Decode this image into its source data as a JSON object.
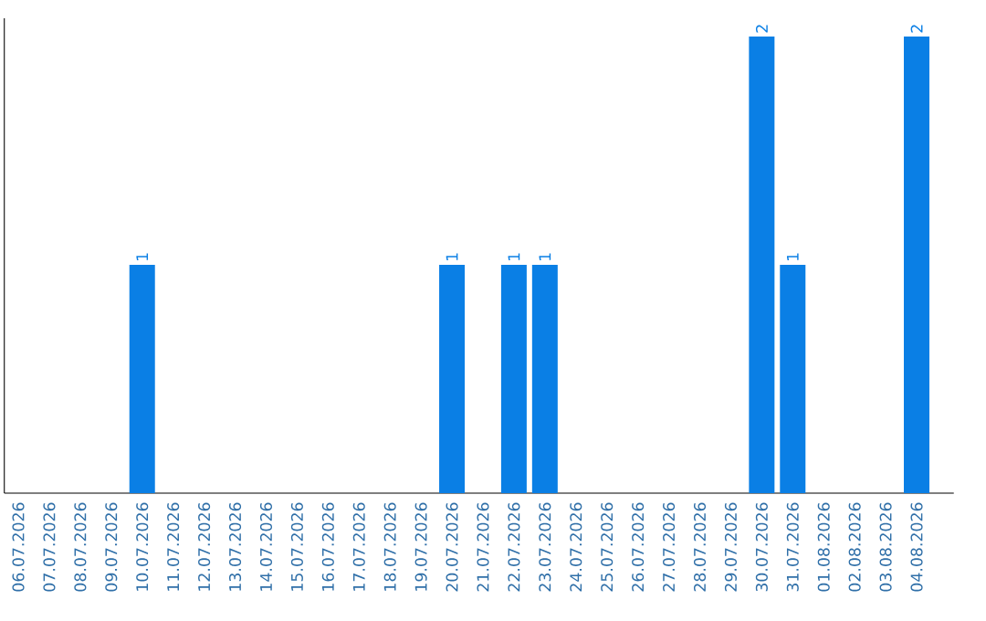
{
  "chart_data": {
    "type": "bar",
    "categories": [
      "06.07.2026",
      "07.07.2026",
      "08.07.2026",
      "09.07.2026",
      "10.07.2026",
      "11.07.2026",
      "12.07.2026",
      "13.07.2026",
      "14.07.2026",
      "15.07.2026",
      "16.07.2026",
      "17.07.2026",
      "18.07.2026",
      "19.07.2026",
      "20.07.2026",
      "21.07.2026",
      "22.07.2026",
      "23.07.2026",
      "24.07.2026",
      "25.07.2026",
      "26.07.2026",
      "27.07.2026",
      "28.07.2026",
      "29.07.2026",
      "30.07.2026",
      "31.07.2026",
      "01.08.2026",
      "02.08.2026",
      "03.08.2026",
      "04.08.2026"
    ],
    "values": [
      0,
      0,
      0,
      0,
      1,
      0,
      0,
      0,
      0,
      0,
      0,
      0,
      0,
      0,
      1,
      0,
      1,
      1,
      0,
      0,
      0,
      0,
      0,
      0,
      2,
      1,
      0,
      0,
      0,
      2
    ],
    "value_labels": [
      null,
      null,
      null,
      null,
      "1",
      null,
      null,
      null,
      null,
      null,
      null,
      null,
      null,
      null,
      "1",
      null,
      "1",
      "1",
      null,
      null,
      null,
      null,
      null,
      null,
      "2",
      "1",
      null,
      null,
      null,
      "2"
    ],
    "color": "#0a7fe5",
    "tick_labels": "x"
  }
}
